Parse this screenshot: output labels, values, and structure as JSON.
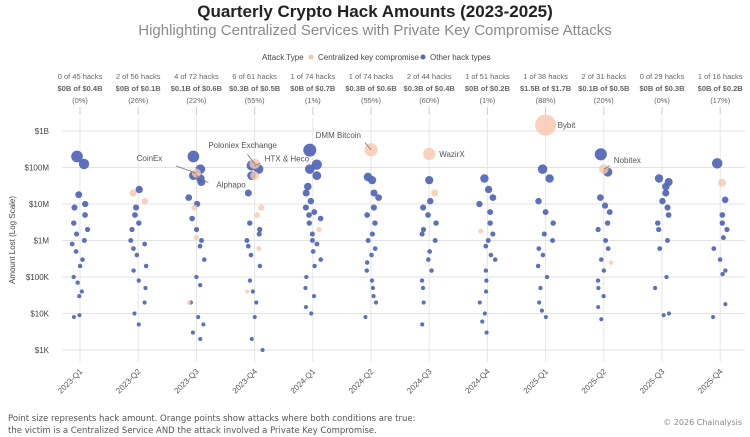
{
  "chart_data": {
    "type": "scatter",
    "title": "Quarterly Crypto Hack Amounts (2023-2025)",
    "subtitle": "Highlighting Centralized Services with Private Key Compromise Attacks",
    "ylabel": "Amount Lost (Log Scale)",
    "yscale": "log",
    "ylim_usd": [
      1000,
      1000000000
    ],
    "yticks": [
      {
        "v": 1000000000.0,
        "label": "$1B"
      },
      {
        "v": 100000000.0,
        "label": "$100M"
      },
      {
        "v": 10000000.0,
        "label": "$10M"
      },
      {
        "v": 1000000.0,
        "label": "$1M"
      },
      {
        "v": 100000.0,
        "label": "$100K"
      },
      {
        "v": 10000.0,
        "label": "$10K"
      },
      {
        "v": 1000.0,
        "label": "$1K"
      }
    ],
    "grid": true,
    "legend": {
      "title": "Attack Type",
      "placement": "top-center",
      "items": [
        {
          "label": "Centralized key compromise",
          "color": "#f7c6ab"
        },
        {
          "label": "Other hack types",
          "color": "#5468b8"
        }
      ]
    },
    "value_units": "USD millions",
    "quarters": [
      {
        "label": "2023-Q1",
        "summary": [
          "0 of 45 hacks",
          "$0B of $0.4B",
          "(0%)"
        ],
        "other": [
          200,
          125,
          18,
          10,
          8,
          5,
          3,
          2,
          1.5,
          1,
          0.8,
          0.5,
          0.3,
          0.2,
          0.1,
          0.07,
          0.04,
          0.03,
          0.009,
          0.008
        ],
        "ck": []
      },
      {
        "label": "2023-Q2",
        "summary": [
          "2 of 56 hacks",
          "$0B of $0.1B",
          "(26%)"
        ],
        "other": [
          25,
          8,
          5,
          3,
          2,
          1,
          0.8,
          0.6,
          0.4,
          0.2,
          0.15,
          0.08,
          0.05,
          0.02,
          0.01,
          0.005
        ],
        "ck": [
          20,
          12
        ]
      },
      {
        "label": "2023-Q3",
        "summary": [
          "4 of 72 hacks",
          "$0.1B of $0.6B",
          "(22%)"
        ],
        "other": [
          200,
          90,
          60,
          50,
          40,
          15,
          10,
          4,
          2,
          1,
          0.7,
          0.3,
          0.1,
          0.06,
          0.02,
          0.008,
          0.005,
          0.003,
          0.002
        ],
        "ck": [
          70,
          8,
          1.2,
          0.02
        ]
      },
      {
        "label": "2023-Q4",
        "summary": [
          "6 of 61 hacks",
          "$0.3B of $0.5B",
          "(55%)"
        ],
        "other": [
          113,
          90,
          60,
          20,
          3,
          2,
          1.5,
          1,
          0.7,
          0.4,
          0.2,
          0.08,
          0.04,
          0.02,
          0.008,
          0.002,
          0.001
        ],
        "ck": [
          126,
          60,
          8,
          5,
          0.6,
          0.04
        ]
      },
      {
        "label": "2024-Q1",
        "summary": [
          "1 of 74 hacks",
          "$0B of $0.7B",
          "(1%)"
        ],
        "other": [
          300,
          120,
          90,
          60,
          30,
          20,
          12,
          8,
          6,
          5,
          4,
          3,
          1.5,
          1,
          0.8,
          0.5,
          0.3,
          0.2,
          0.1,
          0.05,
          0.03,
          0.015,
          0.01
        ],
        "ck": [
          2
        ]
      },
      {
        "label": "2024-Q2",
        "summary": [
          "1 of 74 hacks",
          "$0.3B of $0.6B",
          "(55%)"
        ],
        "other": [
          55,
          45,
          20,
          15,
          8,
          5,
          3,
          1.5,
          1,
          0.6,
          0.4,
          0.25,
          0.15,
          0.08,
          0.05,
          0.03,
          0.02,
          0.008
        ],
        "ck": [
          305
        ]
      },
      {
        "label": "2024-Q3",
        "summary": [
          "2 of 44 hacks",
          "$0.3B of $0.4B",
          "(60%)"
        ],
        "other": [
          45,
          12,
          8,
          5,
          3,
          2,
          1.5,
          1,
          0.5,
          0.3,
          0.15,
          0.08,
          0.05,
          0.02,
          0.005
        ],
        "ck": [
          235,
          20
        ]
      },
      {
        "label": "2024-Q4",
        "summary": [
          "1 of 51 hacks",
          "$0B of $0.2B",
          "(1%)"
        ],
        "other": [
          50,
          25,
          15,
          10,
          6,
          3,
          1.5,
          1,
          0.7,
          0.4,
          0.3,
          0.15,
          0.08,
          0.04,
          0.02,
          0.01,
          0.006,
          0.003
        ],
        "ck": [
          1.8
        ]
      },
      {
        "label": "2025-Q1",
        "summary": [
          "1 of 38 hacks",
          "$1.5B of $1.7B",
          "(88%)"
        ],
        "other": [
          90,
          50,
          12,
          6,
          3,
          1.5,
          1,
          0.6,
          0.4,
          0.2,
          0.1,
          0.05,
          0.02,
          0.012,
          0.008
        ],
        "ck": [
          1460
        ]
      },
      {
        "label": "2025-Q2",
        "summary": [
          "2 of 31 hacks",
          "$0.1B of $0.5B",
          "(20%)"
        ],
        "other": [
          230,
          75,
          15,
          9,
          6,
          3,
          2,
          1,
          0.6,
          0.3,
          0.15,
          0.08,
          0.05,
          0.03,
          0.015,
          0.007
        ],
        "ck": [
          90,
          0.25
        ]
      },
      {
        "label": "2025-Q3",
        "summary": [
          "0 of 29 hacks",
          "$0B of $0.3B",
          "(0%)"
        ],
        "other": [
          50,
          40,
          30,
          20,
          12,
          8,
          5,
          3,
          2,
          1,
          0.6,
          0.1,
          0.05,
          0.01,
          0.009
        ],
        "ck": []
      },
      {
        "label": "2025-Q4",
        "summary": [
          "1 of 16 hacks",
          "$0B of $0.2B",
          "(17%)"
        ],
        "other": [
          130,
          13,
          5,
          3,
          2,
          1.2,
          0.6,
          0.3,
          0.15,
          0.12,
          0.018,
          0.008
        ],
        "ck": [
          38
        ]
      }
    ],
    "annotations": [
      {
        "label": "CoinEx",
        "quarter": "2023-Q3",
        "value_musd": 70
      },
      {
        "label": "Alphapo",
        "quarter": "2023-Q3",
        "value_musd": 60
      },
      {
        "label": "Poloniex Exchange",
        "quarter": "2023-Q4",
        "value_musd": 126
      },
      {
        "label": "HTX & Heco",
        "quarter": "2023-Q4",
        "value_musd": 113
      },
      {
        "label": "DMM Bitcoin",
        "quarter": "2024-Q2",
        "value_musd": 305
      },
      {
        "label": "WazirX",
        "quarter": "2024-Q3",
        "value_musd": 235
      },
      {
        "label": "Bybit",
        "quarter": "2025-Q1",
        "value_musd": 1460
      },
      {
        "label": "Nobitex",
        "quarter": "2025-Q2",
        "value_musd": 90
      }
    ],
    "footnote_lines": [
      "Point size represents hack amount. Orange points show attacks where both conditions are true:",
      "the victim is a Centralized Service AND the attack involved a Private Key Compromise."
    ],
    "copyright": "© 2026 Chainalysis"
  }
}
